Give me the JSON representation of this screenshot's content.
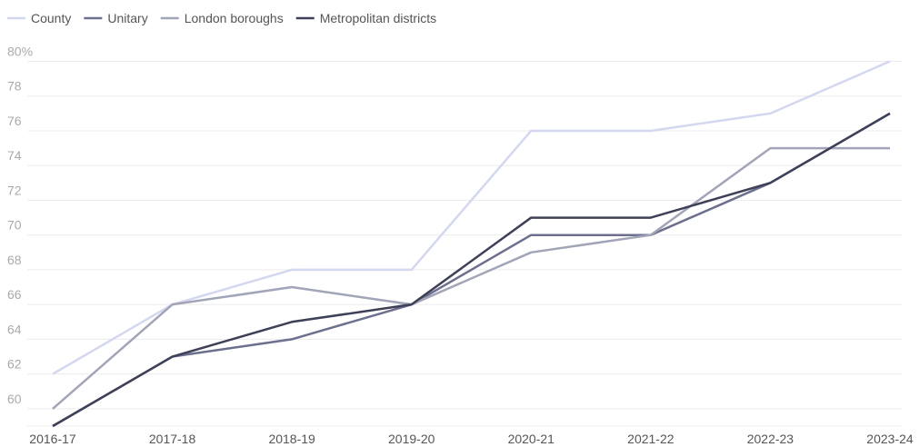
{
  "chart_data": {
    "type": "line",
    "categories": [
      "2016-17",
      "2017-18",
      "2018-19",
      "2019-20",
      "2020-21",
      "2021-22",
      "2022-23",
      "2023-24"
    ],
    "series": [
      {
        "name": "County",
        "color": "#d3d7f0",
        "values": [
          62,
          66,
          68,
          68,
          76,
          76,
          77,
          80
        ]
      },
      {
        "name": "Unitary",
        "color": "#6c6f8e",
        "values": [
          59,
          63,
          64,
          66,
          70,
          70,
          73,
          77
        ]
      },
      {
        "name": "London boroughs",
        "color": "#a2a4b8",
        "values": [
          60,
          66,
          67,
          66,
          69,
          70,
          75,
          75
        ]
      },
      {
        "name": "Metropolitan districts",
        "color": "#3e4058",
        "values": [
          59,
          63,
          65,
          66,
          71,
          71,
          73,
          77
        ]
      }
    ],
    "ylim": [
      59,
      80
    ],
    "yticks": [
      60,
      62,
      64,
      66,
      68,
      70,
      72,
      74,
      76,
      78,
      {
        "value": 80,
        "label": "80%"
      }
    ],
    "grid": true,
    "legend": "top-left"
  }
}
